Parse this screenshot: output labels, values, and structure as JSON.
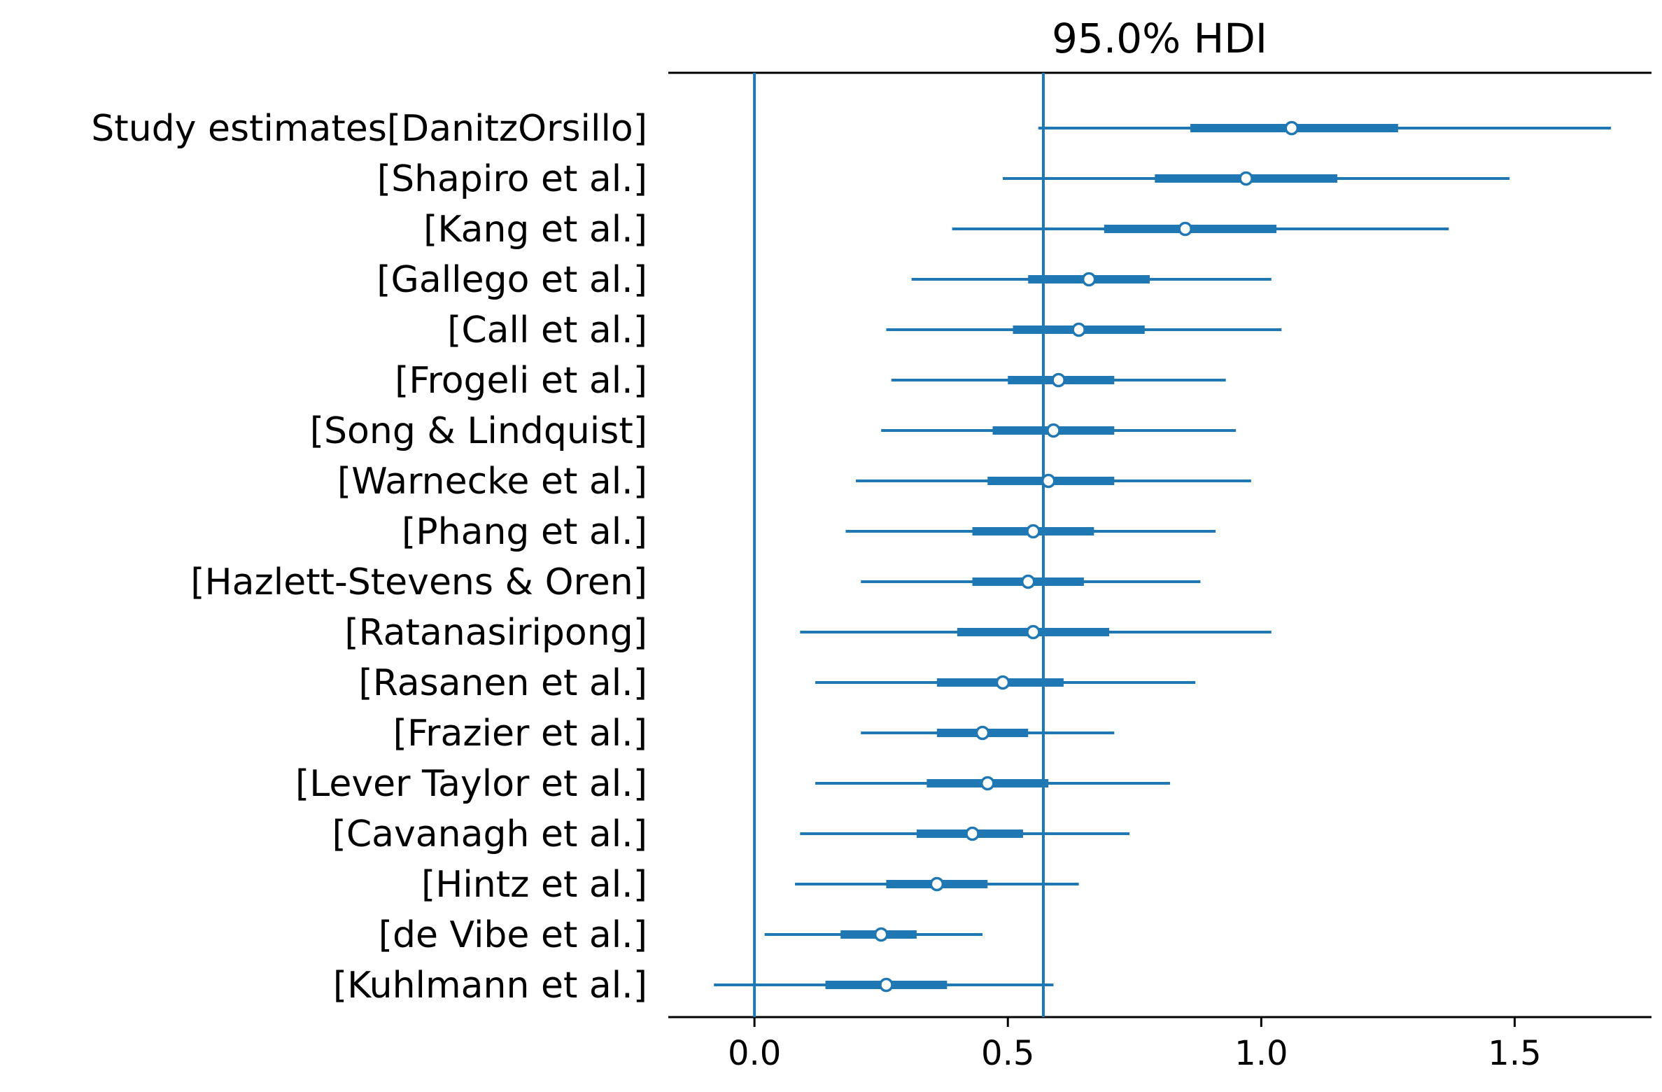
{
  "chart_data": {
    "type": "forest",
    "title": "95.0% HDI",
    "xlabel": "",
    "ylabel": "",
    "xlim": [
      -0.17,
      1.77
    ],
    "xticks": [
      0.0,
      0.5,
      1.0,
      1.5
    ],
    "xtick_labels": [
      "0.0",
      "0.5",
      "1.0",
      "1.5"
    ],
    "reference_lines": [
      0.0,
      0.57
    ],
    "grid": false,
    "legend": "none",
    "colors": {
      "series": "#1f77b4",
      "marker_fill": "#ffffff"
    },
    "studies": [
      {
        "label": "Study estimates[DanitzOrsillo]",
        "mean": 1.06,
        "hdi_low": 0.56,
        "hdi_high": 1.69,
        "iqr_low": 0.86,
        "iqr_high": 1.27
      },
      {
        "label": "[Shapiro et al.]",
        "mean": 0.97,
        "hdi_low": 0.49,
        "hdi_high": 1.49,
        "iqr_low": 0.79,
        "iqr_high": 1.15
      },
      {
        "label": "[Kang et al.]",
        "mean": 0.85,
        "hdi_low": 0.39,
        "hdi_high": 1.37,
        "iqr_low": 0.69,
        "iqr_high": 1.03
      },
      {
        "label": "[Gallego et al.]",
        "mean": 0.66,
        "hdi_low": 0.31,
        "hdi_high": 1.02,
        "iqr_low": 0.54,
        "iqr_high": 0.78
      },
      {
        "label": "[Call et al.]",
        "mean": 0.64,
        "hdi_low": 0.26,
        "hdi_high": 1.04,
        "iqr_low": 0.51,
        "iqr_high": 0.77
      },
      {
        "label": "[Frogeli et al.]",
        "mean": 0.6,
        "hdi_low": 0.27,
        "hdi_high": 0.93,
        "iqr_low": 0.5,
        "iqr_high": 0.71
      },
      {
        "label": "[Song & Lindquist]",
        "mean": 0.59,
        "hdi_low": 0.25,
        "hdi_high": 0.95,
        "iqr_low": 0.47,
        "iqr_high": 0.71
      },
      {
        "label": "[Warnecke et al.]",
        "mean": 0.58,
        "hdi_low": 0.2,
        "hdi_high": 0.98,
        "iqr_low": 0.46,
        "iqr_high": 0.71
      },
      {
        "label": "[Phang et al.]",
        "mean": 0.55,
        "hdi_low": 0.18,
        "hdi_high": 0.91,
        "iqr_low": 0.43,
        "iqr_high": 0.67
      },
      {
        "label": "[Hazlett-Stevens & Oren]",
        "mean": 0.54,
        "hdi_low": 0.21,
        "hdi_high": 0.88,
        "iqr_low": 0.43,
        "iqr_high": 0.65
      },
      {
        "label": "[Ratanasiripong]",
        "mean": 0.55,
        "hdi_low": 0.09,
        "hdi_high": 1.02,
        "iqr_low": 0.4,
        "iqr_high": 0.7
      },
      {
        "label": "[Rasanen et al.]",
        "mean": 0.49,
        "hdi_low": 0.12,
        "hdi_high": 0.87,
        "iqr_low": 0.36,
        "iqr_high": 0.61
      },
      {
        "label": "[Frazier et al.]",
        "mean": 0.45,
        "hdi_low": 0.21,
        "hdi_high": 0.71,
        "iqr_low": 0.36,
        "iqr_high": 0.54
      },
      {
        "label": "[Lever Taylor et al.]",
        "mean": 0.46,
        "hdi_low": 0.12,
        "hdi_high": 0.82,
        "iqr_low": 0.34,
        "iqr_high": 0.58
      },
      {
        "label": "[Cavanagh et al.]",
        "mean": 0.43,
        "hdi_low": 0.09,
        "hdi_high": 0.74,
        "iqr_low": 0.32,
        "iqr_high": 0.53
      },
      {
        "label": "[Hintz et al.]",
        "mean": 0.36,
        "hdi_low": 0.08,
        "hdi_high": 0.64,
        "iqr_low": 0.26,
        "iqr_high": 0.46
      },
      {
        "label": "[de Vibe et al.]",
        "mean": 0.25,
        "hdi_low": 0.02,
        "hdi_high": 0.45,
        "iqr_low": 0.17,
        "iqr_high": 0.32
      },
      {
        "label": "[Kuhlmann et al.]",
        "mean": 0.26,
        "hdi_low": -0.08,
        "hdi_high": 0.59,
        "iqr_low": 0.14,
        "iqr_high": 0.38
      }
    ]
  }
}
